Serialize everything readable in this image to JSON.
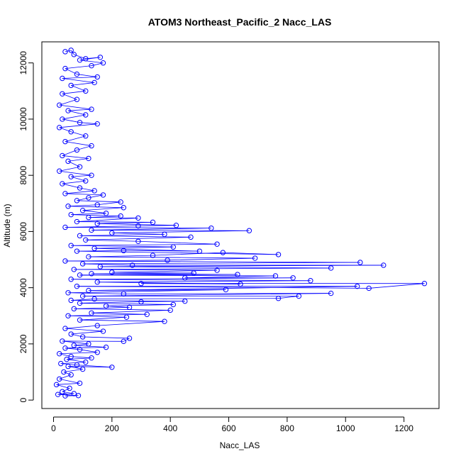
{
  "chart_data": {
    "type": "scatter",
    "title": "ATOM3 Northeast_Pacific_2 Nacc_LAS",
    "xlabel": "Nacc_LAS",
    "ylabel": "Altitude (m)",
    "xlim": [
      -40,
      1320
    ],
    "ylim": [
      -300,
      12750
    ],
    "x_ticks": [
      0,
      200,
      400,
      600,
      800,
      1000,
      1200
    ],
    "y_ticks": [
      0,
      2000,
      4000,
      6000,
      8000,
      10000,
      12000
    ],
    "x_tick_labels": [
      "0",
      "200",
      "400",
      "600",
      "800",
      "1000",
      "1200"
    ],
    "y_tick_labels": [
      "0",
      "2000",
      "4000",
      "6000",
      "8000",
      "10000",
      "12000"
    ],
    "grid": false,
    "marker": "open-circle",
    "connected": true,
    "color": "#0000ff",
    "series": [
      {
        "points": [
          [
            40,
            150
          ],
          [
            85,
            160
          ],
          [
            15,
            200
          ],
          [
            70,
            230
          ],
          [
            30,
            300
          ],
          [
            55,
            420
          ],
          [
            10,
            550
          ],
          [
            90,
            600
          ],
          [
            20,
            750
          ],
          [
            60,
            900
          ],
          [
            35,
            1000
          ],
          [
            100,
            1100
          ],
          [
            50,
            1200
          ],
          [
            200,
            1170
          ],
          [
            80,
            1250
          ],
          [
            25,
            1300
          ],
          [
            110,
            1350
          ],
          [
            45,
            1450
          ],
          [
            130,
            1500
          ],
          [
            60,
            1550
          ],
          [
            20,
            1650
          ],
          [
            150,
            1700
          ],
          [
            90,
            1800
          ],
          [
            40,
            1850
          ],
          [
            180,
            1880
          ],
          [
            70,
            1950
          ],
          [
            120,
            2000
          ],
          [
            30,
            2100
          ],
          [
            240,
            2090
          ],
          [
            260,
            2200
          ],
          [
            100,
            2250
          ],
          [
            60,
            2350
          ],
          [
            170,
            2450
          ],
          [
            40,
            2550
          ],
          [
            150,
            2650
          ],
          [
            380,
            2800
          ],
          [
            90,
            2850
          ],
          [
            250,
            2950
          ],
          [
            50,
            3000
          ],
          [
            320,
            3050
          ],
          [
            130,
            3100
          ],
          [
            400,
            3200
          ],
          [
            70,
            3250
          ],
          [
            260,
            3300
          ],
          [
            180,
            3350
          ],
          [
            410,
            3400
          ],
          [
            90,
            3450
          ],
          [
            300,
            3500
          ],
          [
            450,
            3520
          ],
          [
            60,
            3550
          ],
          [
            140,
            3600
          ],
          [
            770,
            3620
          ],
          [
            840,
            3700
          ],
          [
            100,
            3700
          ],
          [
            950,
            3800
          ],
          [
            240,
            3780
          ],
          [
            50,
            3820
          ],
          [
            590,
            3930
          ],
          [
            120,
            3900
          ],
          [
            1040,
            4050
          ],
          [
            80,
            4050
          ],
          [
            1080,
            3980
          ],
          [
            1270,
            4150
          ],
          [
            300,
            4150
          ],
          [
            640,
            4130
          ],
          [
            150,
            4200
          ],
          [
            880,
            4250
          ],
          [
            60,
            4300
          ],
          [
            820,
            4350
          ],
          [
            450,
            4350
          ],
          [
            760,
            4420
          ],
          [
            90,
            4450
          ],
          [
            630,
            4470
          ],
          [
            130,
            4500
          ],
          [
            480,
            4520
          ],
          [
            200,
            4550
          ],
          [
            560,
            4620
          ],
          [
            70,
            4650
          ],
          [
            950,
            4700
          ],
          [
            160,
            4750
          ],
          [
            1130,
            4800
          ],
          [
            270,
            4800
          ],
          [
            100,
            4850
          ],
          [
            1050,
            4900
          ],
          [
            40,
            4950
          ],
          [
            390,
            4980
          ],
          [
            690,
            5050
          ],
          [
            120,
            5100
          ],
          [
            340,
            5150
          ],
          [
            580,
            5250
          ],
          [
            770,
            5180
          ],
          [
            80,
            5300
          ],
          [
            240,
            5320
          ],
          [
            500,
            5300
          ],
          [
            140,
            5400
          ],
          [
            410,
            5450
          ],
          [
            60,
            5500
          ],
          [
            560,
            5550
          ],
          [
            290,
            5650
          ],
          [
            110,
            5700
          ],
          [
            470,
            5800
          ],
          [
            90,
            5850
          ],
          [
            380,
            5900
          ],
          [
            200,
            5950
          ],
          [
            670,
            6030
          ],
          [
            130,
            6050
          ],
          [
            540,
            6120
          ],
          [
            40,
            6150
          ],
          [
            290,
            6200
          ],
          [
            420,
            6220
          ],
          [
            150,
            6280
          ],
          [
            340,
            6330
          ],
          [
            80,
            6350
          ],
          [
            290,
            6480
          ],
          [
            120,
            6500
          ],
          [
            230,
            6550
          ],
          [
            60,
            6600
          ],
          [
            180,
            6650
          ],
          [
            100,
            6750
          ],
          [
            240,
            6850
          ],
          [
            50,
            6900
          ],
          [
            150,
            6950
          ],
          [
            230,
            7050
          ],
          [
            80,
            7100
          ],
          [
            120,
            7200
          ],
          [
            170,
            7300
          ],
          [
            40,
            7350
          ],
          [
            140,
            7450
          ],
          [
            90,
            7550
          ],
          [
            30,
            7700
          ],
          [
            110,
            7800
          ],
          [
            60,
            7950
          ],
          [
            130,
            8000
          ],
          [
            20,
            8150
          ],
          [
            90,
            8300
          ],
          [
            50,
            8500
          ],
          [
            120,
            8600
          ],
          [
            30,
            8700
          ],
          [
            80,
            8900
          ],
          [
            130,
            9050
          ],
          [
            40,
            9200
          ],
          [
            110,
            9400
          ],
          [
            60,
            9550
          ],
          [
            20,
            9700
          ],
          [
            150,
            9830
          ],
          [
            90,
            9880
          ],
          [
            30,
            10000
          ],
          [
            110,
            10150
          ],
          [
            50,
            10300
          ],
          [
            130,
            10350
          ],
          [
            20,
            10500
          ],
          [
            80,
            10700
          ],
          [
            30,
            10900
          ],
          [
            110,
            11000
          ],
          [
            60,
            11200
          ],
          [
            140,
            11300
          ],
          [
            30,
            11450
          ],
          [
            150,
            11500
          ],
          [
            80,
            11600
          ],
          [
            40,
            11800
          ],
          [
            130,
            11900
          ],
          [
            170,
            12000
          ],
          [
            90,
            12100
          ],
          [
            160,
            12200
          ],
          [
            110,
            12150
          ],
          [
            70,
            12300
          ],
          [
            60,
            12450
          ],
          [
            40,
            12400
          ]
        ]
      }
    ]
  }
}
